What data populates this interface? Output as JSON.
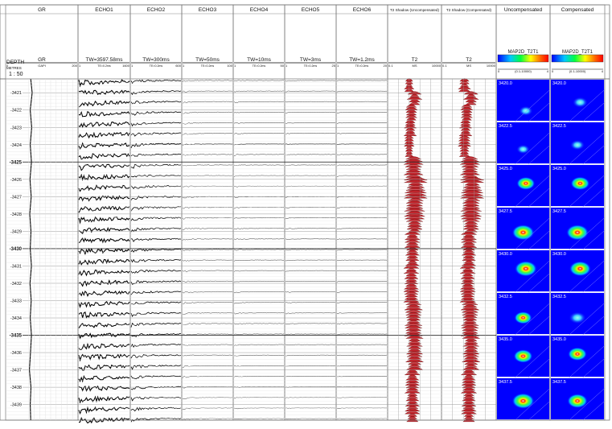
{
  "depth_header": {
    "label": "DEPTH",
    "unit": "METRES",
    "scale": "1 : 50"
  },
  "tracks": [
    {
      "key": "gr",
      "title": "GR",
      "curve": "GR",
      "unit": "GAPI",
      "min": "0",
      "max": "200"
    },
    {
      "key": "echo1",
      "title": "ECHO1",
      "tw": "TW=3597.58ms",
      "te": "TE=0.2ms",
      "min": "1",
      "max": "1600"
    },
    {
      "key": "echo2",
      "title": "ECHO2",
      "tw": "TW=300ms",
      "te": "TE=0.2ms",
      "min": "1",
      "max": "600"
    },
    {
      "key": "echo3",
      "title": "ECHO3",
      "tw": "TW=50ms",
      "te": "TE=0.2ms",
      "min": "1",
      "max": "100"
    },
    {
      "key": "echo4",
      "title": "ECHO4",
      "tw": "TW=10ms",
      "te": "TE=0.2ms",
      "min": "1",
      "max": "50"
    },
    {
      "key": "echo5",
      "title": "ECHO5",
      "tw": "TW=3ms",
      "te": "TE=0.2ms",
      "min": "1",
      "max": "25"
    },
    {
      "key": "echo6",
      "title": "ECHO6",
      "tw": "TW=1.2ms",
      "te": "TE=0.2ms",
      "min": "1",
      "max": "20"
    },
    {
      "key": "t2u",
      "title": "T2 Shadow (Uncompensated)",
      "curve": "T2",
      "unit": "MS",
      "min": "0.1",
      "max": "10000"
    },
    {
      "key": "t2c",
      "title": "T2 Shadow (Compensated)",
      "curve": "T2",
      "unit": "MS",
      "min": "0.1",
      "max": "10000"
    },
    {
      "key": "mapu",
      "title": "Uncompensated",
      "curve": "MAP2D_T2T1",
      "range": "(0.1-10000)",
      "min": "0",
      "max": "4"
    },
    {
      "key": "mapc",
      "title": "Compensated",
      "curve": "MAP2D_T2T1",
      "range": "(0.1-10000)",
      "min": "0",
      "max": "4"
    }
  ],
  "colors": {
    "grid": "#b8b8b8",
    "echo": "#000000",
    "t2_fill": "#c0242b",
    "map_bg": "#0000ff",
    "gr_curve": "#000000"
  },
  "chart_data": {
    "type": "well_log",
    "depth_range": [
      3420.2,
      3439.9
    ],
    "depth_ticks": [
      {
        "depth": 3421,
        "label": "3421"
      },
      {
        "depth": 3422,
        "label": "3422"
      },
      {
        "depth": 3423,
        "label": "3423"
      },
      {
        "depth": 3424,
        "label": "3424"
      },
      {
        "depth": 3425,
        "label": "3425"
      },
      {
        "depth": 3426,
        "label": "3426"
      },
      {
        "depth": 3427,
        "label": "3427"
      },
      {
        "depth": 3428,
        "label": "3428"
      },
      {
        "depth": 3429,
        "label": "3429"
      },
      {
        "depth": 3430,
        "label": "3430"
      },
      {
        "depth": 3431,
        "label": "3431"
      },
      {
        "depth": 3432,
        "label": "3432"
      },
      {
        "depth": 3433,
        "label": "3433"
      },
      {
        "depth": 3434,
        "label": "3434"
      },
      {
        "depth": 3435,
        "label": "3435"
      },
      {
        "depth": 3436,
        "label": "3436"
      },
      {
        "depth": 3437,
        "label": "3437"
      },
      {
        "depth": 3438,
        "label": "3438"
      },
      {
        "depth": 3439,
        "label": "3439"
      }
    ],
    "major_depths": [
      3425,
      3430,
      3435
    ],
    "gr_curve": [
      {
        "depth": 3420.2,
        "value": 30
      },
      {
        "depth": 3421.0,
        "value": 36
      },
      {
        "depth": 3422.0,
        "value": 28
      },
      {
        "depth": 3423.0,
        "value": 34
      },
      {
        "depth": 3424.0,
        "value": 28
      },
      {
        "depth": 3425.0,
        "value": 33
      },
      {
        "depth": 3426.0,
        "value": 27
      },
      {
        "depth": 3427.0,
        "value": 32
      },
      {
        "depth": 3428.0,
        "value": 26
      },
      {
        "depth": 3429.0,
        "value": 31
      },
      {
        "depth": 3430.0,
        "value": 28
      },
      {
        "depth": 3431.0,
        "value": 33
      },
      {
        "depth": 3432.0,
        "value": 27
      },
      {
        "depth": 3433.0,
        "value": 32
      },
      {
        "depth": 3434.0,
        "value": 28
      },
      {
        "depth": 3435.0,
        "value": 33
      },
      {
        "depth": 3436.0,
        "value": 29
      },
      {
        "depth": 3437.0,
        "value": 25
      },
      {
        "depth": 3438.0,
        "value": 31
      },
      {
        "depth": 3439.0,
        "value": 28
      },
      {
        "depth": 3439.9,
        "value": 30
      }
    ],
    "echo_count": 33,
    "echo_amplitude": [
      1.0,
      0.75,
      0.35,
      0.25,
      0.2,
      0.18
    ],
    "t2_lobes_uncompensated": [
      {
        "depth": 3420.5,
        "log_t2": 1.0,
        "width": 0.4
      },
      {
        "depth": 3421.2,
        "log_t2": 1.5,
        "width": 0.6
      },
      {
        "depth": 3422.0,
        "log_t2": 1.2,
        "width": 0.5
      },
      {
        "depth": 3423.0,
        "log_t2": 1.1,
        "width": 0.5
      },
      {
        "depth": 3424.0,
        "log_t2": 1.0,
        "width": 0.4
      },
      {
        "depth": 3425.3,
        "log_t2": 1.4,
        "width": 0.8
      },
      {
        "depth": 3426.5,
        "log_t2": 1.6,
        "width": 0.9
      },
      {
        "depth": 3428.0,
        "log_t2": 1.5,
        "width": 0.8
      },
      {
        "depth": 3430.0,
        "log_t2": 1.3,
        "width": 0.6
      },
      {
        "depth": 3432.0,
        "log_t2": 1.2,
        "width": 0.6
      },
      {
        "depth": 3434.0,
        "log_t2": 1.4,
        "width": 0.7
      },
      {
        "depth": 3436.0,
        "log_t2": 1.5,
        "width": 0.7
      },
      {
        "depth": 3438.0,
        "log_t2": 1.3,
        "width": 0.6
      }
    ],
    "t2_lobes_compensated": [
      {
        "depth": 3420.5,
        "log_t2": 1.1,
        "width": 0.5
      },
      {
        "depth": 3421.2,
        "log_t2": 1.7,
        "width": 0.6
      },
      {
        "depth": 3422.0,
        "log_t2": 1.3,
        "width": 0.5
      },
      {
        "depth": 3423.0,
        "log_t2": 1.2,
        "width": 0.5
      },
      {
        "depth": 3424.0,
        "log_t2": 1.1,
        "width": 0.5
      },
      {
        "depth": 3425.3,
        "log_t2": 1.6,
        "width": 0.8
      },
      {
        "depth": 3426.5,
        "log_t2": 1.8,
        "width": 0.9
      },
      {
        "depth": 3428.0,
        "log_t2": 1.7,
        "width": 0.8
      },
      {
        "depth": 3430.0,
        "log_t2": 1.5,
        "width": 0.6
      },
      {
        "depth": 3432.0,
        "log_t2": 1.4,
        "width": 0.6
      },
      {
        "depth": 3434.0,
        "log_t2": 1.6,
        "width": 0.7
      },
      {
        "depth": 3436.0,
        "log_t2": 1.7,
        "width": 0.7
      },
      {
        "depth": 3438.0,
        "log_t2": 1.5,
        "width": 0.6
      }
    ],
    "maps": [
      {
        "label": "3420.0",
        "spots_u": [
          {
            "t2": 0.55,
            "t1": 0.25,
            "i": 0.35
          }
        ],
        "spots_c": [
          {
            "t2": 0.55,
            "t1": 0.45,
            "i": 0.45
          }
        ]
      },
      {
        "label": "3422.5",
        "spots_u": [
          {
            "t2": 0.5,
            "t1": 0.35,
            "i": 0.3
          }
        ],
        "spots_c": [
          {
            "t2": 0.5,
            "t1": 0.45,
            "i": 0.4
          }
        ]
      },
      {
        "label": "3425.0",
        "spots_u": [
          {
            "t2": 0.55,
            "t1": 0.55,
            "i": 0.7
          }
        ],
        "spots_c": [
          {
            "t2": 0.55,
            "t1": 0.55,
            "i": 0.75
          }
        ]
      },
      {
        "label": "3427.5",
        "spots_u": [
          {
            "t2": 0.5,
            "t1": 0.4,
            "i": 1.0
          }
        ],
        "spots_c": [
          {
            "t2": 0.5,
            "t1": 0.4,
            "i": 1.0
          }
        ]
      },
      {
        "label": "3430.0",
        "spots_u": [
          {
            "t2": 0.55,
            "t1": 0.55,
            "i": 1.0
          }
        ],
        "spots_c": [
          {
            "t2": 0.55,
            "t1": 0.55,
            "i": 0.95
          }
        ]
      },
      {
        "label": "3432.5",
        "spots_u": [
          {
            "t2": 0.5,
            "t1": 0.4,
            "i": 0.65
          }
        ],
        "spots_c": [
          {
            "t2": 0.5,
            "t1": 0.4,
            "i": 0.6
          }
        ]
      },
      {
        "label": "3435.0",
        "spots_u": [
          {
            "t2": 0.5,
            "t1": 0.5,
            "i": 0.75
          }
        ],
        "spots_c": [
          {
            "t2": 0.5,
            "t1": 0.55,
            "i": 0.75
          }
        ]
      },
      {
        "label": "3437.5",
        "spots_u": [
          {
            "t2": 0.5,
            "t1": 0.45,
            "i": 1.0
          }
        ],
        "spots_c": [
          {
            "t2": 0.5,
            "t1": 0.45,
            "i": 0.85
          }
        ]
      }
    ]
  }
}
